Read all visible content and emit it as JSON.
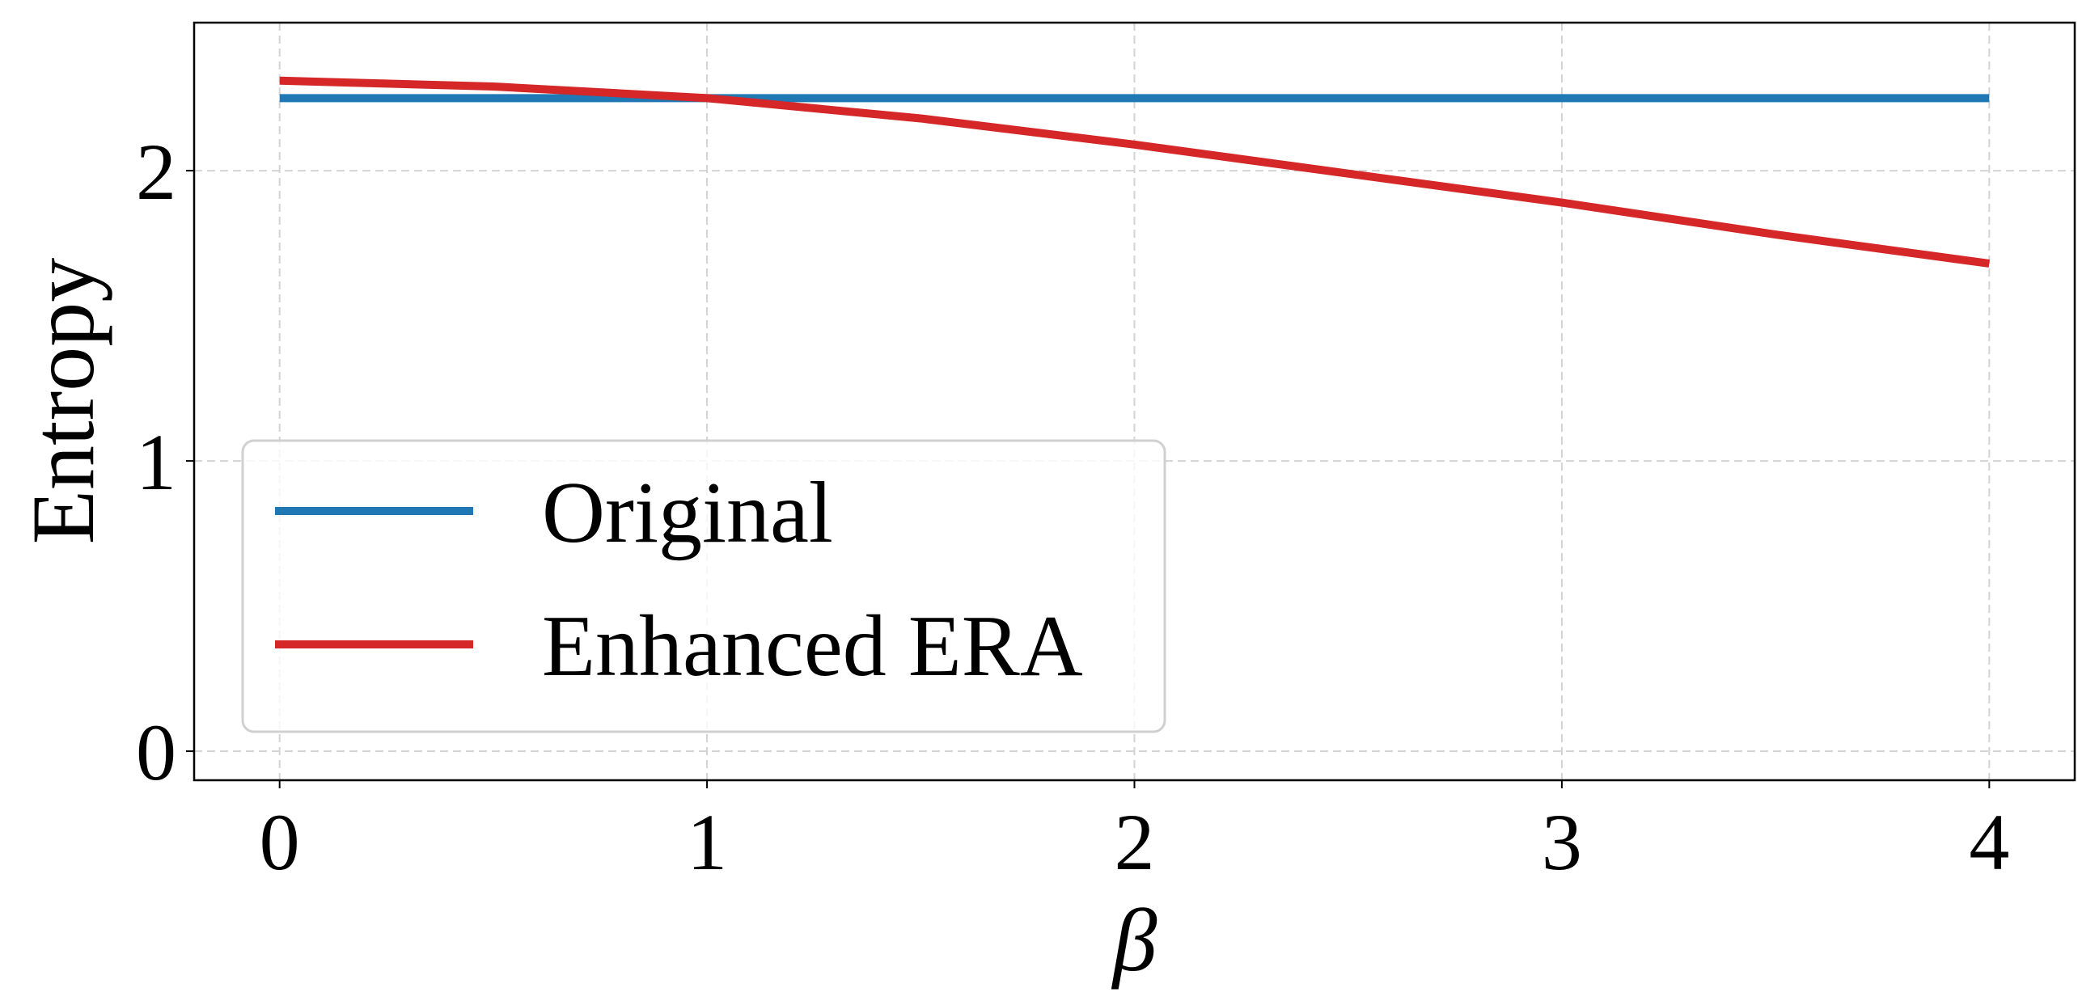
{
  "chart_data": {
    "type": "line",
    "x": [
      0,
      0.5,
      1,
      1.5,
      2,
      2.5,
      3,
      3.5,
      4
    ],
    "series": [
      {
        "name": "Original",
        "color": "#1f77b4",
        "values": [
          2.25,
          2.25,
          2.25,
          2.25,
          2.25,
          2.25,
          2.25,
          2.25,
          2.25
        ]
      },
      {
        "name": "Enhanced ERA",
        "color": "#d62728",
        "values": [
          2.31,
          2.29,
          2.25,
          2.18,
          2.09,
          1.99,
          1.89,
          1.78,
          1.68
        ]
      }
    ],
    "xlabel": "β",
    "ylabel": "Entropy",
    "xlim": [
      -0.2,
      4.2
    ],
    "xticks": [
      0,
      1,
      2,
      3,
      4
    ],
    "ylim": [
      -0.1,
      2.51
    ],
    "yticks": [
      0,
      1,
      2
    ],
    "grid": true,
    "legend": "lower left"
  }
}
